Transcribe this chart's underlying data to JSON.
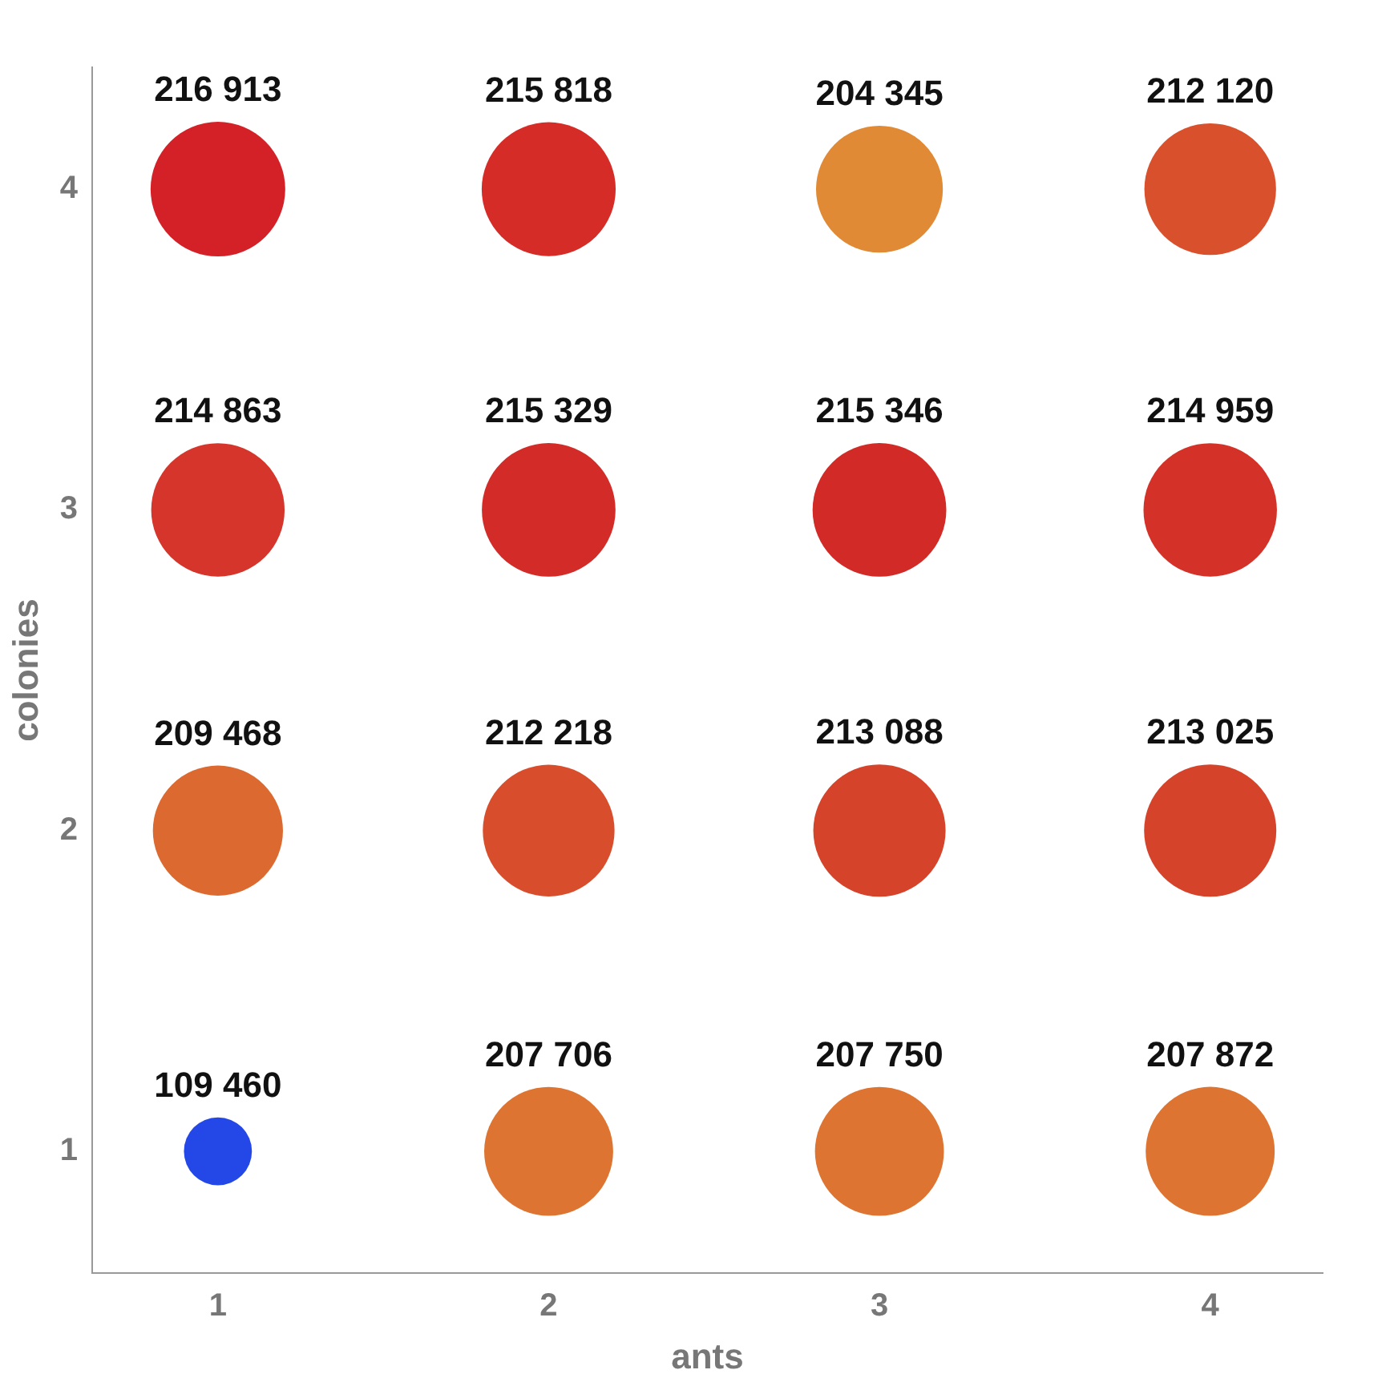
{
  "chart_data": {
    "type": "bubble",
    "xlabel": "ants",
    "ylabel": "colonies",
    "x": [
      1,
      2,
      3,
      4,
      1,
      2,
      3,
      4,
      1,
      2,
      3,
      4,
      1,
      2,
      3,
      4
    ],
    "values": [
      4,
      4,
      4,
      4,
      3,
      3,
      3,
      3,
      2,
      2,
      2,
      2,
      1,
      1,
      1,
      1
    ],
    "sizes": [
      1,
      0.99,
      0.887,
      0.956,
      0.981,
      0.985,
      0.986,
      0.982,
      0.933,
      0.957,
      0.965,
      0.964,
      0.255,
      0.917,
      0.917,
      0.918
    ],
    "annotations": [
      {
        "text": "216 913",
        "x": 1,
        "y": 4
      },
      {
        "text": "215 818",
        "x": 2,
        "y": 4
      },
      {
        "text": "204 345",
        "x": 3,
        "y": 4
      },
      {
        "text": "212 120",
        "x": 4,
        "y": 4
      },
      {
        "text": "214 863",
        "x": 1,
        "y": 3
      },
      {
        "text": "215 329",
        "x": 2,
        "y": 3
      },
      {
        "text": "215 346",
        "x": 3,
        "y": 3
      },
      {
        "text": "214 959",
        "x": 4,
        "y": 3
      },
      {
        "text": "209 468",
        "x": 1,
        "y": 2
      },
      {
        "text": "212 218",
        "x": 2,
        "y": 2
      },
      {
        "text": "213 088",
        "x": 3,
        "y": 2
      },
      {
        "text": "213 025",
        "x": 4,
        "y": 2
      },
      {
        "text": "109 460",
        "x": 1,
        "y": 1
      },
      {
        "text": "207 706",
        "x": 2,
        "y": 1
      },
      {
        "text": "207 750",
        "x": 3,
        "y": 1
      },
      {
        "text": "207 872",
        "x": 4,
        "y": 1
      }
    ],
    "colors": [
      "#d42027",
      "#d52c27",
      "#e08a35",
      "#d9502d",
      "#d5352a",
      "#d32c28",
      "#d22a27",
      "#d43229",
      "#dc6a30",
      "#d84e2d",
      "#d5432b",
      "#d6432b",
      "#2448e8",
      "#de7431",
      "#de7431",
      "#de7431"
    ],
    "xlim": [
      0.62,
      4.34
    ],
    "xticks": [
      1,
      2,
      3,
      4
    ],
    "ylim": [
      0.62,
      4.38
    ],
    "yticks": [
      1,
      2,
      3,
      4
    ],
    "grid": false,
    "legend": false
  }
}
